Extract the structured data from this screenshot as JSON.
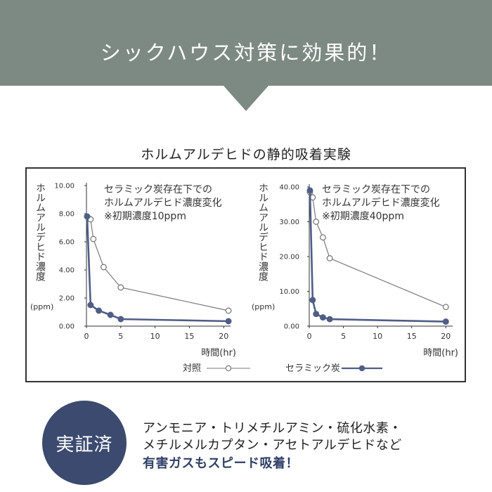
{
  "header": {
    "headline": "シックハウス対策に効果的！",
    "bg_color": "#7d8a84"
  },
  "experiment_title": "ホルムアルデヒドの静的吸着実験",
  "chart_data": [
    {
      "type": "line",
      "annotation": [
        "セラミック炭存在下での",
        "ホルムアルデヒド濃度変化",
        "※初期濃度10ppm"
      ],
      "ylabel": "ホルムアルデヒド濃度",
      "yunit": "(ppm)",
      "xlabel": "時間(hr)",
      "ylim": [
        0,
        10
      ],
      "xlim": [
        0,
        21
      ],
      "yticks": [
        "0.00",
        "2.00",
        "4.00",
        "6.00",
        "8.00",
        "10.00"
      ],
      "xticks": [
        "0",
        "5",
        "10",
        "15",
        "20"
      ],
      "series": [
        {
          "name": "対照",
          "color": "#7a7a7a",
          "marker": "open",
          "x": [
            0.1,
            0.6,
            1.0,
            2.5,
            5.0,
            20.7
          ],
          "y": [
            7.8,
            7.6,
            6.2,
            4.2,
            2.75,
            1.1
          ]
        },
        {
          "name": "セラミック炭",
          "color": "#4f5e86",
          "marker": "filled",
          "x": [
            0.1,
            0.6,
            1.8,
            3.5,
            5.0,
            20.7
          ],
          "y": [
            7.8,
            1.5,
            1.1,
            0.8,
            0.5,
            0.35
          ]
        }
      ]
    },
    {
      "type": "line",
      "annotation": [
        "セラミック炭存在下での",
        "ホルムアルデヒド濃度変化",
        "※初期濃度40ppm"
      ],
      "ylabel": "ホルムアルデヒド濃度",
      "yunit": "(ppm)",
      "xlabel": "時間(hr)",
      "ylim": [
        0,
        40
      ],
      "xlim": [
        0,
        21
      ],
      "yticks": [
        "0.00",
        "10.00",
        "20.00",
        "30.00",
        "40.00"
      ],
      "xticks": [
        "0",
        "5",
        "10",
        "15",
        "20"
      ],
      "series": [
        {
          "name": "対照",
          "color": "#7a7a7a",
          "marker": "open",
          "x": [
            0.1,
            0.5,
            1.0,
            2.0,
            3.0,
            20.0
          ],
          "y": [
            38.5,
            37.0,
            30.0,
            25.5,
            19.5,
            5.5
          ]
        },
        {
          "name": "セラミック炭",
          "color": "#4f5e86",
          "marker": "filled",
          "x": [
            0.1,
            0.5,
            1.0,
            2.0,
            3.0,
            20.0
          ],
          "y": [
            39.0,
            7.5,
            3.5,
            2.5,
            2.0,
            1.3
          ]
        }
      ]
    }
  ],
  "legend": {
    "items": [
      {
        "label": "対照",
        "color": "#7a7a7a",
        "marker": "open"
      },
      {
        "label": "セラミック炭",
        "color": "#4f5e86",
        "marker": "filled"
      }
    ]
  },
  "badge": {
    "text": "実証済",
    "color": "#3b4a6e"
  },
  "gases": {
    "line1": "アンモニア・トリメチルアミン・硫化水素・",
    "line2": "メチルメルカプタン・アセトアルデヒドなど",
    "line3": "有害ガスもスピード吸着！"
  }
}
